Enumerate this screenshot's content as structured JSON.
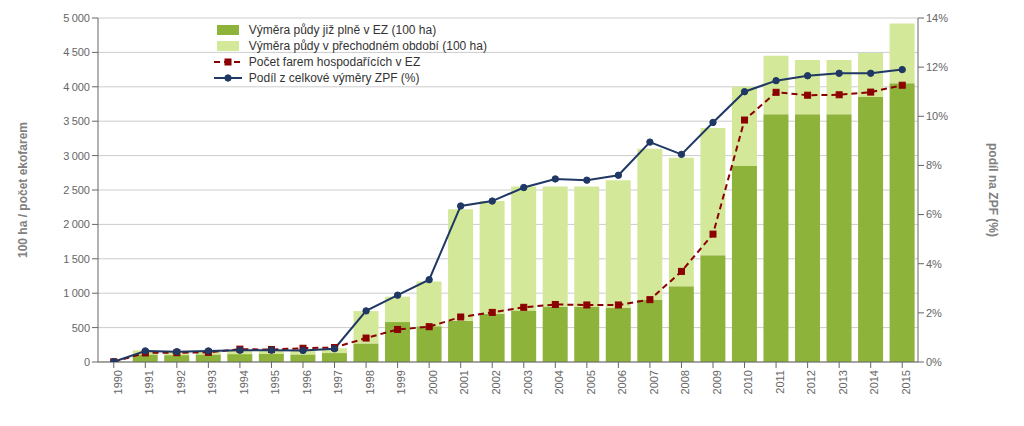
{
  "chart_data": {
    "type": "bar",
    "stacked": true,
    "grid": true,
    "legend": "upper left",
    "ylabel": "100 ha / počet ekofarem",
    "y2label": "podíl na ZPF (%)",
    "categories": [
      "1990",
      "1991",
      "1992",
      "1993",
      "1994",
      "1995",
      "1996",
      "1997",
      "1998",
      "1999",
      "2000",
      "2001",
      "2002",
      "2003",
      "2004",
      "2005",
      "2006",
      "2007",
      "2008",
      "2009",
      "2010",
      "2011",
      "2012",
      "2013",
      "2014",
      "2015"
    ],
    "ylim": [
      0,
      5000
    ],
    "yticks": [
      0,
      500,
      {
        "value": 1000,
        "label": "1 000"
      },
      {
        "value": 1500,
        "label": "1 500"
      },
      {
        "value": 2000,
        "label": "2 000"
      },
      {
        "value": 2500,
        "label": "2 500"
      },
      {
        "value": 3000,
        "label": "3 000"
      },
      {
        "value": 3500,
        "label": "3 500"
      },
      {
        "value": 4000,
        "label": "4 000"
      },
      {
        "value": 4500,
        "label": "4 500"
      },
      {
        "value": 5000,
        "label": "5 000"
      }
    ],
    "y2lim": [
      0,
      14
    ],
    "y2ticks": [
      {
        "value": 0,
        "label": "0%"
      },
      {
        "value": 2,
        "label": "2%"
      },
      {
        "value": 4,
        "label": "4%"
      },
      {
        "value": 6,
        "label": "6%"
      },
      {
        "value": 8,
        "label": "8%"
      },
      {
        "value": 10,
        "label": "10%"
      },
      {
        "value": 12,
        "label": "12%"
      },
      {
        "value": 14,
        "label": "14%"
      }
    ],
    "series": [
      {
        "name": "Výměra půdy již plně v EZ (100 ha)",
        "type": "bar",
        "color": "#8db33a",
        "values": [
          3,
          110,
          100,
          110,
          115,
          115,
          110,
          130,
          270,
          580,
          520,
          600,
          700,
          750,
          800,
          800,
          790,
          900,
          1100,
          1550,
          2850,
          3600,
          3600,
          3600,
          3850,
          4050
        ]
      },
      {
        "name": "Výměra půdy v přechodném období (100 ha)",
        "type": "bar",
        "color": "#d4e89a",
        "values": [
          3,
          60,
          50,
          50,
          55,
          55,
          60,
          70,
          470,
          370,
          650,
          1620,
          1640,
          1800,
          1750,
          1750,
          1850,
          2200,
          1870,
          1850,
          1150,
          850,
          790,
          790,
          640,
          870
        ]
      },
      {
        "name": "Počet farem hospodařících v EZ",
        "type": "line",
        "color": "#8b0000",
        "marker": "square",
        "line_style": "dashed",
        "values": [
          3,
          132,
          135,
          141,
          187,
          181,
          200,
          211,
          348,
          473,
          513,
          654,
          721,
          795,
          836,
          829,
          829,
          906,
          1317,
          1859,
          3517,
          3920,
          3878,
          3884,
          3923,
          4023
        ]
      },
      {
        "name": "Podíl z celkové výměry ZPF (%)",
        "type": "line",
        "color": "#1f3864",
        "marker": "circle",
        "line_style": "solid",
        "axis": "y2",
        "values": [
          0.01,
          0.45,
          0.42,
          0.45,
          0.48,
          0.48,
          0.47,
          0.54,
          2.08,
          2.72,
          3.35,
          6.35,
          6.55,
          7.1,
          7.45,
          7.4,
          7.6,
          8.95,
          8.45,
          9.75,
          11.0,
          11.45,
          11.65,
          11.75,
          11.75,
          11.9
        ]
      }
    ]
  }
}
